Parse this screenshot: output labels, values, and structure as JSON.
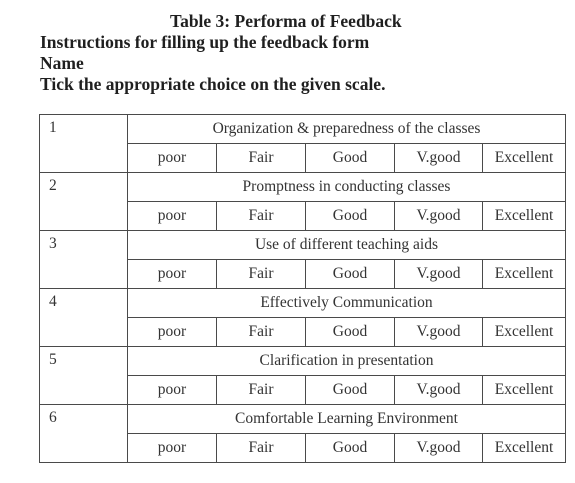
{
  "heading": {
    "title": "Table 3: Performa of Feedback",
    "instructions": "Instructions for filling up the feedback form",
    "name_label": "Name",
    "tick_instruction": "Tick the appropriate choice on the given scale."
  },
  "scale": [
    "poor",
    "Fair",
    "Good",
    "V.good",
    "Excellent"
  ],
  "items": [
    {
      "number": "1",
      "criterion": "Organization & preparedness of the classes"
    },
    {
      "number": "2",
      "criterion": "Promptness in conducting classes"
    },
    {
      "number": "3",
      "criterion": "Use of different teaching aids"
    },
    {
      "number": "4",
      "criterion": "Effectively Communication"
    },
    {
      "number": "5",
      "criterion": "Clarification in presentation"
    },
    {
      "number": "6",
      "criterion": "Comfortable Learning Environment"
    }
  ]
}
